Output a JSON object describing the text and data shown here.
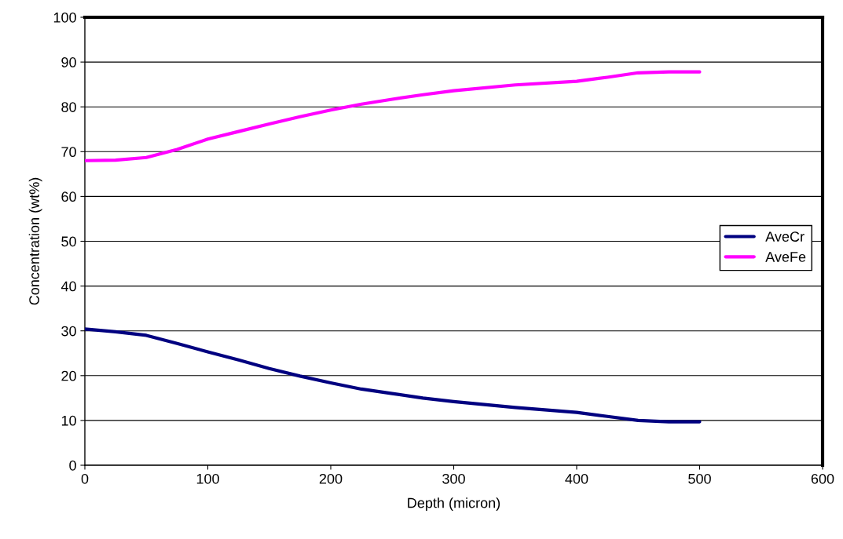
{
  "chart_data": {
    "type": "line",
    "xlabel": "Depth (micron)",
    "ylabel": "Concentration (wt%)",
    "x": [
      0,
      25,
      50,
      75,
      100,
      125,
      150,
      175,
      200,
      225,
      250,
      275,
      300,
      350,
      400,
      425,
      450,
      475,
      500
    ],
    "series": [
      {
        "name": "AveCr",
        "color": "#000080",
        "values": [
          30.4,
          29.8,
          29.0,
          27.2,
          25.3,
          23.5,
          21.6,
          19.9,
          18.4,
          17.0,
          16.0,
          15.0,
          14.2,
          12.9,
          11.8,
          10.9,
          10.0,
          9.7,
          9.7
        ]
      },
      {
        "name": "AveFe",
        "color": "#ff00ff",
        "values": [
          68.0,
          68.1,
          68.7,
          70.5,
          72.8,
          74.5,
          76.2,
          77.8,
          79.3,
          80.6,
          81.7,
          82.7,
          83.6,
          84.9,
          85.7,
          86.6,
          87.6,
          87.8,
          87.8
        ]
      }
    ],
    "xlim": [
      0,
      600
    ],
    "xticks": [
      0,
      100,
      200,
      300,
      400,
      500,
      600
    ],
    "ylim": [
      0,
      100
    ],
    "yticks": [
      0,
      10,
      20,
      30,
      40,
      50,
      60,
      70,
      80,
      90,
      100
    ],
    "grid": "y",
    "legend": "center right",
    "marker": "none",
    "line_style": "solid"
  }
}
